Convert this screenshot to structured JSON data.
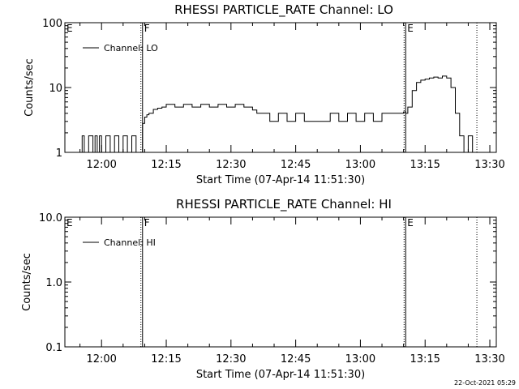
{
  "chart_data": [
    {
      "type": "line",
      "title": "RHESSI PARTICLE_RATE Channel: LO",
      "xlabel": "Start Time (07-Apr-14 11:51:30)",
      "ylabel": "Counts/sec",
      "yscale": "log",
      "ylim": [
        1,
        100
      ],
      "xlim": [
        "11:51:30",
        "13:31:30"
      ],
      "y_ticks": [
        "1",
        "10",
        "100"
      ],
      "x_ticks": [
        "12:00",
        "12:15",
        "12:30",
        "12:45",
        "13:00",
        "13:15",
        "13:30"
      ],
      "grid": false,
      "legend": {
        "position": "top-left",
        "entries": [
          "Channel: LO"
        ]
      },
      "markers": [
        {
          "label": "E",
          "time": "11:51:30",
          "style": "solid"
        },
        {
          "label": "F",
          "time": "12:09:30",
          "style": "solid"
        },
        {
          "label": "E",
          "time": "13:10:30",
          "style": "solid"
        },
        {
          "label": "",
          "time": "13:27:00",
          "style": "dotted"
        }
      ],
      "series": [
        {
          "name": "Channel: LO",
          "x": [
            "11:55:00",
            "11:55:30",
            "11:56:00",
            "11:57:00",
            "11:58:00",
            "11:58:30",
            "11:59:00",
            "11:59:30",
            "12:00:00",
            "12:01:00",
            "12:02:00",
            "12:03:00",
            "12:04:00",
            "12:05:00",
            "12:06:00",
            "12:07:00",
            "12:08:00",
            "12:09:30",
            "12:10:00",
            "12:10:30",
            "12:11:00",
            "12:12:00",
            "12:13:00",
            "12:14:00",
            "12:15:00",
            "12:17:00",
            "12:19:00",
            "12:21:00",
            "12:23:00",
            "12:25:00",
            "12:27:00",
            "12:29:00",
            "12:31:00",
            "12:33:00",
            "12:35:00",
            "12:36:00",
            "12:37:00",
            "12:39:00",
            "12:41:00",
            "12:43:00",
            "12:45:00",
            "12:47:00",
            "12:49:00",
            "12:51:00",
            "12:53:00",
            "12:55:00",
            "12:57:00",
            "12:59:00",
            "13:01:00",
            "13:03:00",
            "13:05:00",
            "13:07:00",
            "13:09:00",
            "13:10:00",
            "13:10:30",
            "13:11:00",
            "13:12:00",
            "13:13:00",
            "13:14:00",
            "13:15:00",
            "13:16:00",
            "13:17:00",
            "13:18:00",
            "13:19:00",
            "13:20:00",
            "13:21:00",
            "13:22:00",
            "13:23:00",
            "13:24:00",
            "13:25:00",
            "13:26:00"
          ],
          "values": [
            1,
            1.8,
            1,
            1.8,
            1,
            1.8,
            1,
            1.8,
            1,
            1.8,
            1,
            1.8,
            1,
            1.8,
            1,
            1.8,
            1,
            2.8,
            3.5,
            3.8,
            4,
            4.6,
            4.8,
            5,
            5.5,
            5,
            5.5,
            5,
            5.5,
            5,
            5.5,
            5,
            5.5,
            5,
            4.5,
            4,
            4,
            3,
            4,
            3,
            4,
            3,
            3,
            3,
            4,
            3,
            4,
            3,
            4,
            3,
            4,
            4,
            4,
            4.2,
            4,
            5,
            9,
            12,
            13,
            13.5,
            14,
            14.5,
            14,
            15,
            14,
            10,
            4,
            1.8,
            1,
            1.8,
            1
          ]
        }
      ]
    },
    {
      "type": "line",
      "title": "RHESSI PARTICLE_RATE Channel: HI",
      "xlabel": "Start Time (07-Apr-14 11:51:30)",
      "ylabel": "Counts/sec",
      "yscale": "log",
      "ylim": [
        0.1,
        10
      ],
      "xlim": [
        "11:51:30",
        "13:31:30"
      ],
      "y_ticks": [
        "0.1",
        "1.0",
        "10.0"
      ],
      "x_ticks": [
        "12:00",
        "12:15",
        "12:30",
        "12:45",
        "13:00",
        "13:15",
        "13:30"
      ],
      "grid": false,
      "legend": {
        "position": "top-left",
        "entries": [
          "Channel: HI"
        ]
      },
      "markers": [
        {
          "label": "E",
          "time": "11:51:30",
          "style": "solid"
        },
        {
          "label": "F",
          "time": "12:09:30",
          "style": "solid"
        },
        {
          "label": "E",
          "time": "13:10:30",
          "style": "solid"
        },
        {
          "label": "",
          "time": "13:27:00",
          "style": "dotted"
        }
      ],
      "series": [
        {
          "name": "Channel: HI",
          "x": [],
          "values": []
        }
      ]
    }
  ],
  "footer": {
    "timestamp": "22-Oct-2021 05:29"
  }
}
